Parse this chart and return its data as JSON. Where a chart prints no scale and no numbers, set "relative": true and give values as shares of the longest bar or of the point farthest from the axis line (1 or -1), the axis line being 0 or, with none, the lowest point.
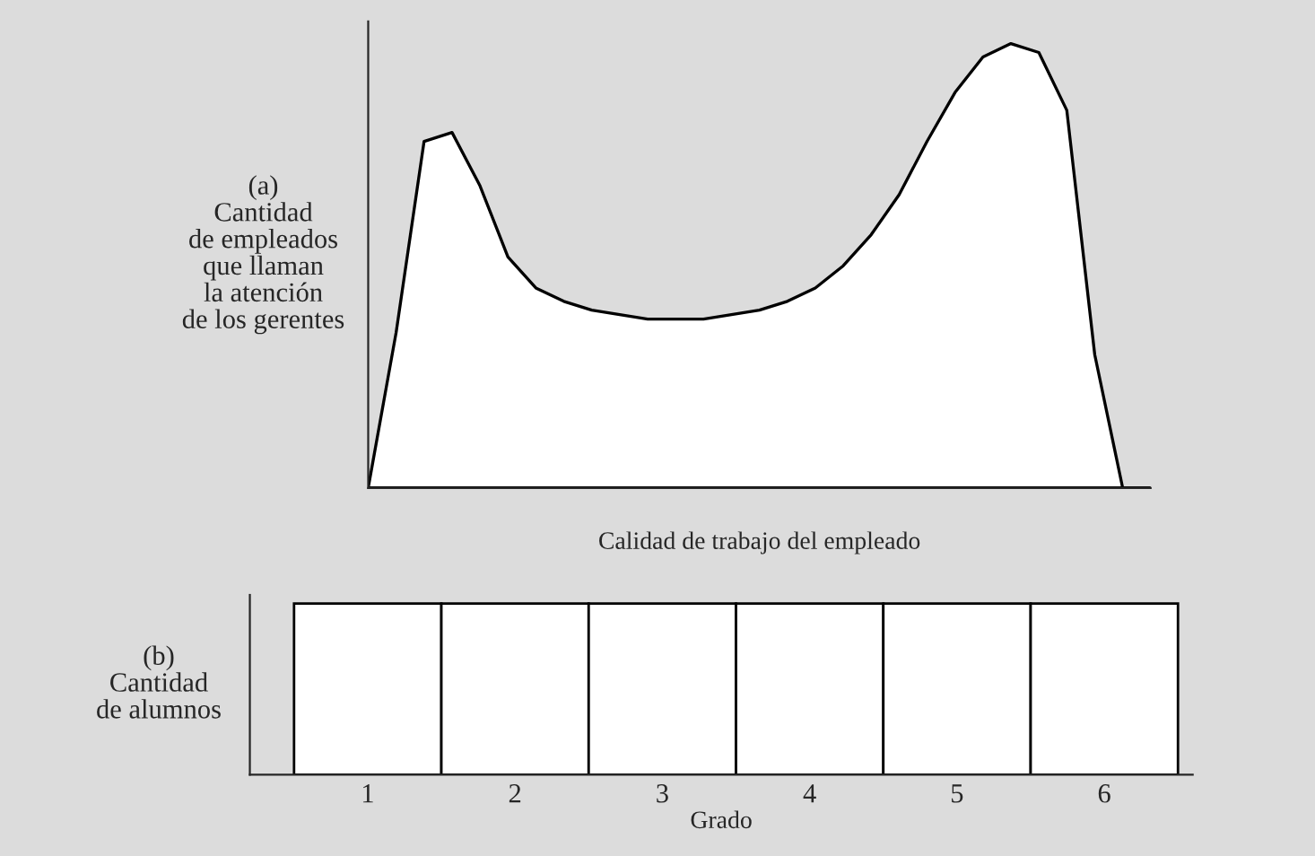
{
  "chart_data": [
    {
      "type": "area",
      "relative": true,
      "xlabel": "Calidad de trabajo del empleado",
      "ylabel": "(a)\nCantidad\nde empleados\nque llaman\nla atención\nde los gerentes",
      "categories": [
        null,
        null,
        null,
        null,
        null,
        null,
        null,
        null,
        null,
        null,
        null,
        null,
        null,
        null,
        null,
        null,
        null,
        null,
        null,
        null,
        null,
        null,
        null,
        null,
        null,
        null,
        null,
        null,
        null
      ],
      "series": [
        {
          "color": "#ffffff",
          "values": [
            0,
            0.35,
            0.78,
            0.8,
            0.68,
            0.52,
            0.45,
            0.42,
            0.4,
            0.39,
            0.38,
            0.38,
            0.38,
            0.39,
            0.4,
            0.42,
            0.45,
            0.5,
            0.57,
            0.66,
            0.78,
            0.89,
            0.97,
            1.0,
            0.98,
            0.85,
            0.3,
            0,
            0
          ]
        }
      ]
    },
    {
      "type": "bar",
      "relative": true,
      "xlabel": "Grado",
      "ylabel": "(b)\nCantidad\nde alumnos",
      "categories": [
        "1",
        "2",
        "3",
        "4",
        "5",
        "6"
      ],
      "series": [
        {
          "color": "#ffffff",
          "values": [
            1,
            1,
            1,
            1,
            1,
            1
          ]
        }
      ]
    }
  ]
}
